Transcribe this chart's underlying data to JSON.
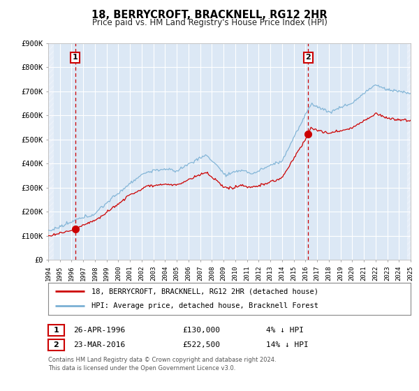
{
  "title": "18, BERRYCROFT, BRACKNELL, RG12 2HR",
  "subtitle": "Price paid vs. HM Land Registry's House Price Index (HPI)",
  "bg_color": "#ffffff",
  "plot_bg_color": "#dce8f5",
  "grid_color": "#ffffff",
  "ylim": [
    0,
    900000
  ],
  "xlim": [
    1994,
    2025
  ],
  "yticks": [
    0,
    100000,
    200000,
    300000,
    400000,
    500000,
    600000,
    700000,
    800000,
    900000
  ],
  "ytick_labels": [
    "£0",
    "£100K",
    "£200K",
    "£300K",
    "£400K",
    "£500K",
    "£600K",
    "£700K",
    "£800K",
    "£900K"
  ],
  "xticks": [
    1994,
    1995,
    1996,
    1997,
    1998,
    1999,
    2000,
    2001,
    2002,
    2003,
    2004,
    2005,
    2006,
    2007,
    2008,
    2009,
    2010,
    2011,
    2012,
    2013,
    2014,
    2015,
    2016,
    2017,
    2018,
    2019,
    2020,
    2021,
    2022,
    2023,
    2024,
    2025
  ],
  "sale1_x": 1996.32,
  "sale1_y": 130000,
  "sale2_x": 2016.23,
  "sale2_y": 522500,
  "property_color": "#cc0000",
  "hpi_color": "#7ab0d4",
  "legend_property": "18, BERRYCROFT, BRACKNELL, RG12 2HR (detached house)",
  "legend_hpi": "HPI: Average price, detached house, Bracknell Forest",
  "table_row1": [
    "1",
    "26-APR-1996",
    "£130,000",
    "4% ↓ HPI"
  ],
  "table_row2": [
    "2",
    "23-MAR-2016",
    "£522,500",
    "14% ↓ HPI"
  ],
  "footnote": "Contains HM Land Registry data © Crown copyright and database right 2024.\nThis data is licensed under the Open Government Licence v3.0."
}
